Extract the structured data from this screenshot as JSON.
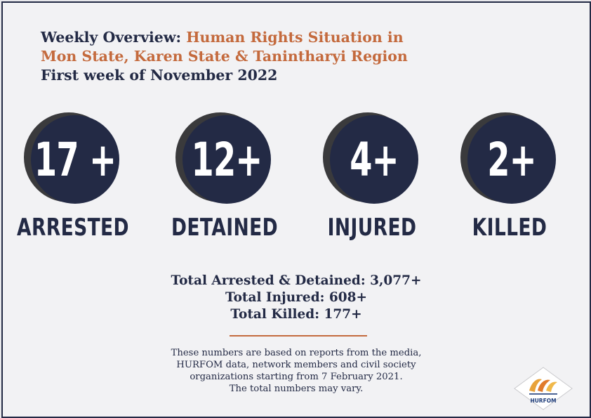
{
  "header": {
    "prefix": "Weekly Overview:",
    "region_line1": "Human Rights Situation in",
    "region_line2": "Mon State, Karen State & Tanintharyi Region",
    "period": "First week of November 2022"
  },
  "stats": [
    {
      "value": "17 +",
      "label": "ARRESTED"
    },
    {
      "value": "12+",
      "label": "DETAINED"
    },
    {
      "value": "4+",
      "label": "INJURED"
    },
    {
      "value": "2+",
      "label": "KILLED"
    }
  ],
  "totals": {
    "arrested_detained": "Total Arrested & Detained: 3,077+",
    "injured": "Total Injured: 608+",
    "killed": "Total Killed: 177+"
  },
  "note": {
    "line1": "These numbers are based on reports from the media,",
    "line2": "HURFOM data, network members and civil society",
    "line3": "organizations starting from 7 February 2021.",
    "line4": "The total numbers may vary."
  },
  "logo": {
    "text": "HURFOM"
  },
  "colors": {
    "navy": "#232a45",
    "orange": "#c46a3d",
    "background": "#f2f2f4"
  }
}
